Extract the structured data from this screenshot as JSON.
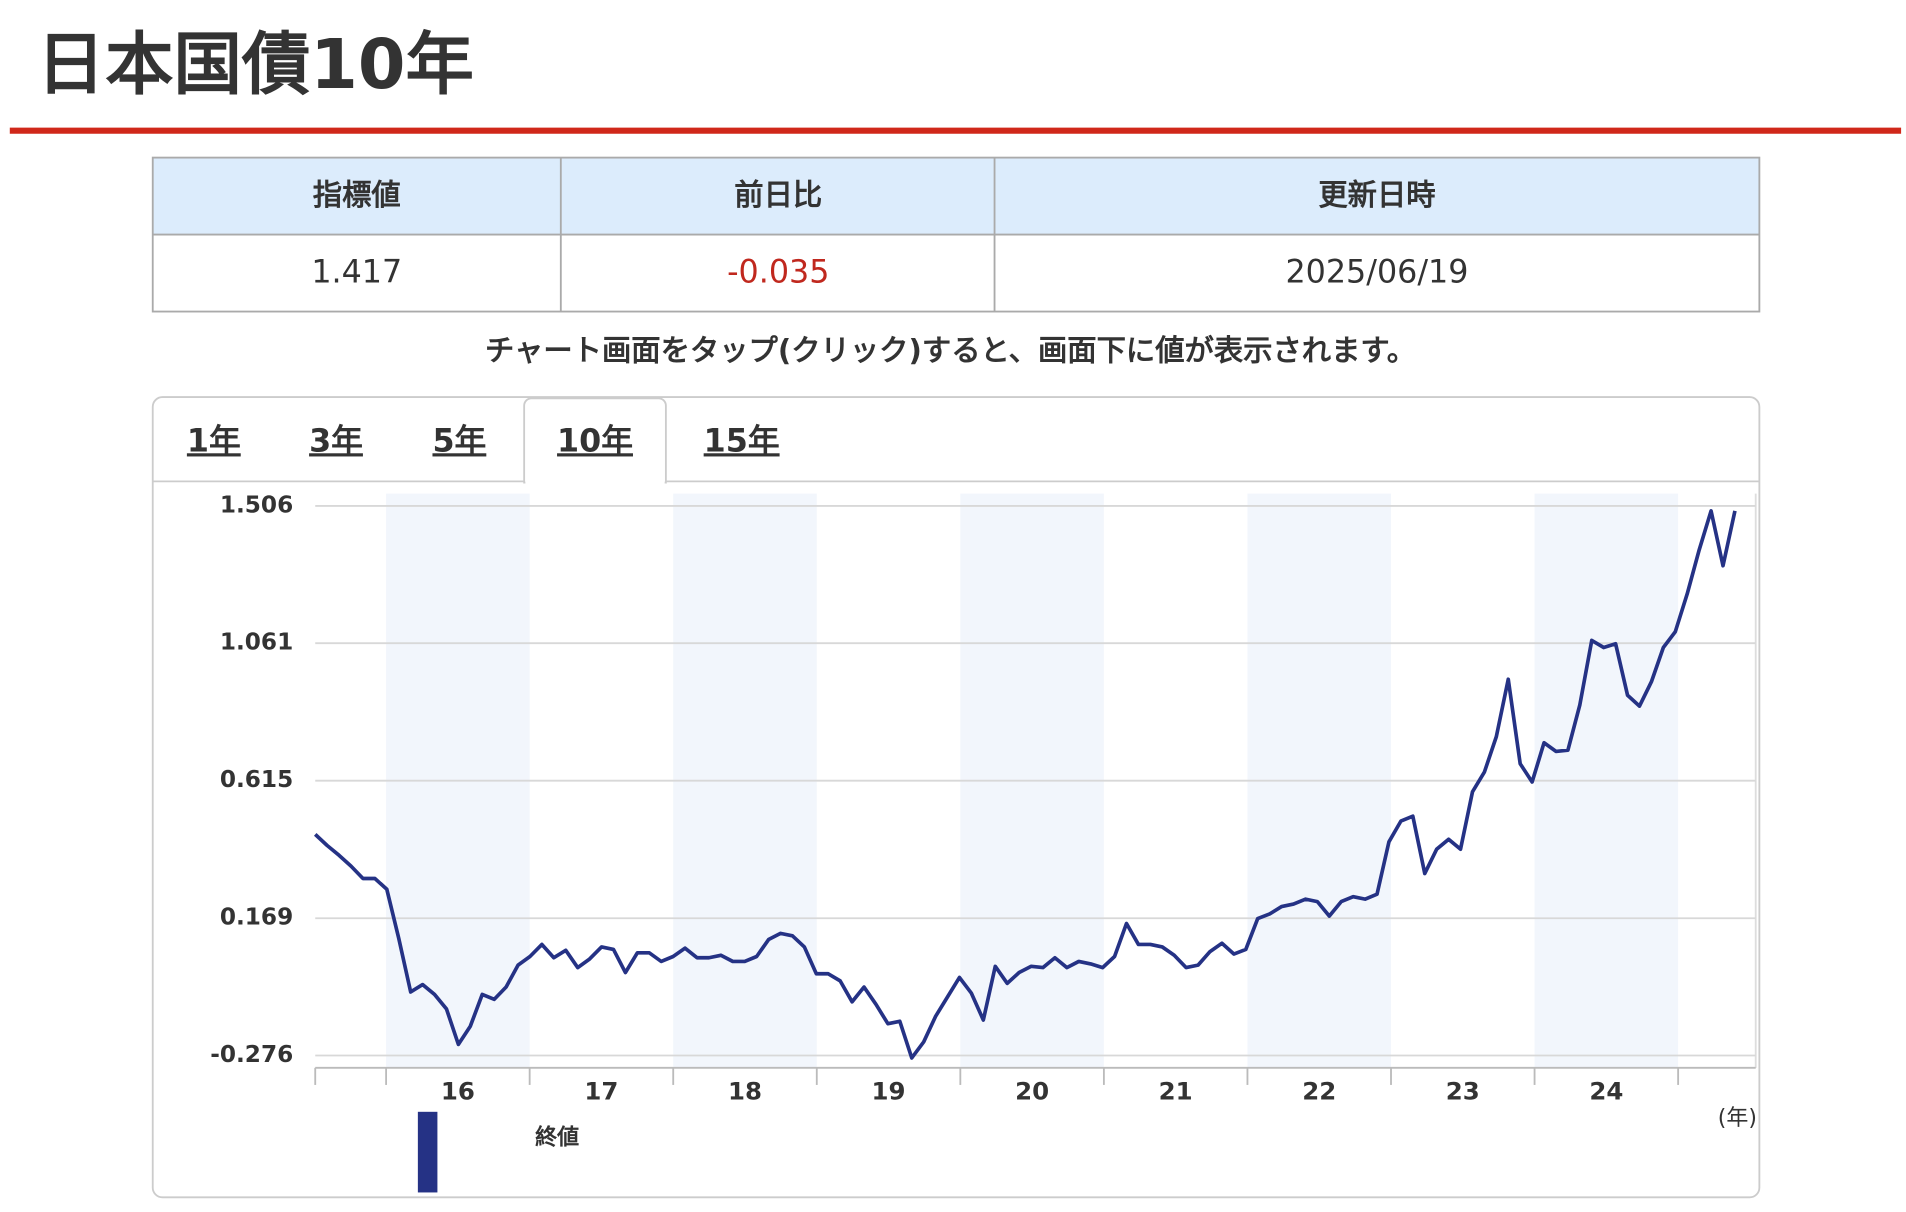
{
  "header": {
    "title": "日本国債10年"
  },
  "table": {
    "headers": [
      "指標値",
      "前日比",
      "更新日時"
    ],
    "rows": [
      [
        "1.417",
        "-0.035",
        "2025/06/19"
      ]
    ]
  },
  "note": "チャート画面をタップ(クリック)すると、画面下に値が表示されます。",
  "tabs": [
    "1年",
    "3年",
    "5年",
    "10年",
    "15年"
  ],
  "chart_data": {
    "type": "line",
    "series": [
      {
        "name": "終値",
        "color": "#253285",
        "values": [
          0.441,
          0.405,
          0.373,
          0.338,
          0.298,
          0.298,
          0.263,
          0.104,
          -0.07,
          -0.046,
          -0.078,
          -0.125,
          -0.24,
          -0.181,
          -0.078,
          -0.094,
          -0.054,
          0.017,
          0.045,
          0.084,
          0.041,
          0.065,
          0.009,
          0.037,
          0.076,
          0.068,
          -0.007,
          0.057,
          0.057,
          0.029,
          0.045,
          0.072,
          0.041,
          0.041,
          0.049,
          0.029,
          0.029,
          0.045,
          0.1,
          0.12,
          0.112,
          0.076,
          -0.011,
          -0.011,
          -0.034,
          -0.102,
          -0.054,
          -0.11,
          -0.173,
          -0.165,
          -0.284,
          -0.232,
          -0.149,
          -0.086,
          -0.023,
          -0.074,
          -0.161,
          0.013,
          -0.042,
          -0.007,
          0.013,
          0.009,
          0.041,
          0.009,
          0.029,
          0.021,
          0.009,
          0.045,
          0.152,
          0.084,
          0.084,
          0.076,
          0.049,
          0.009,
          0.017,
          0.061,
          0.088,
          0.053,
          0.068,
          0.168,
          0.183,
          0.207,
          0.215,
          0.231,
          0.223,
          0.176,
          0.223,
          0.239,
          0.231,
          0.247,
          0.417,
          0.484,
          0.5,
          0.314,
          0.393,
          0.425,
          0.393,
          0.579,
          0.643,
          0.758,
          0.944,
          0.67,
          0.611,
          0.738,
          0.71,
          0.714,
          0.861,
          1.07,
          1.047,
          1.059,
          0.892,
          0.857,
          0.936,
          1.047,
          1.098,
          1.221,
          1.363,
          1.49,
          1.312,
          1.49
        ]
      }
    ],
    "x_labels": [
      "16",
      "17",
      "18",
      "19",
      "20",
      "21",
      "22",
      "23",
      "24"
    ],
    "x_unit": "(年)",
    "ylim": [
      -0.316,
      1.546
    ],
    "yticks": [
      -0.276,
      0.169,
      0.615,
      1.061,
      1.506
    ],
    "grid": true
  }
}
